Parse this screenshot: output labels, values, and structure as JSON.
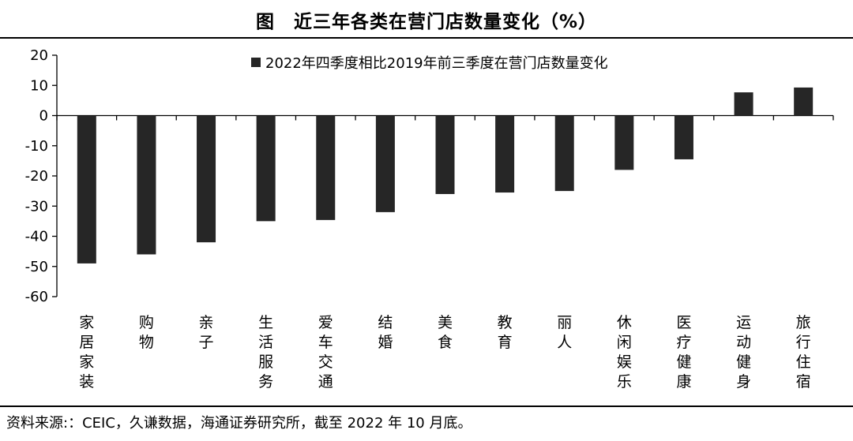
{
  "title": "图　近三年各类在营门店数量变化（%）",
  "source": "资料来源:：CEIC，久谦数据，海通证券研究所，截至 2022 年 10 月底。",
  "chart_data": {
    "type": "bar",
    "categories": [
      "家居家装",
      "购物",
      "亲子",
      "生活服务",
      "爱车交通",
      "结婚",
      "美食",
      "教育",
      "丽人",
      "休闲娱乐",
      "医疗健康",
      "运动健身",
      "旅行住宿"
    ],
    "series": [
      {
        "name": "2022年四季度相比2019年前三季度在营门店数量变化",
        "values": [
          -49,
          -46,
          -42,
          -35,
          -34.6,
          -32,
          -26,
          -25.5,
          -25,
          -18,
          -14.5,
          7.7,
          9.3
        ],
        "color": "#262626"
      }
    ],
    "yticks": [
      "20",
      "10",
      "0",
      "-10",
      "-20",
      "-30",
      "-40",
      "-50",
      "-60"
    ],
    "ylim": [
      -60,
      20
    ],
    "grid": false,
    "legend": "top"
  }
}
